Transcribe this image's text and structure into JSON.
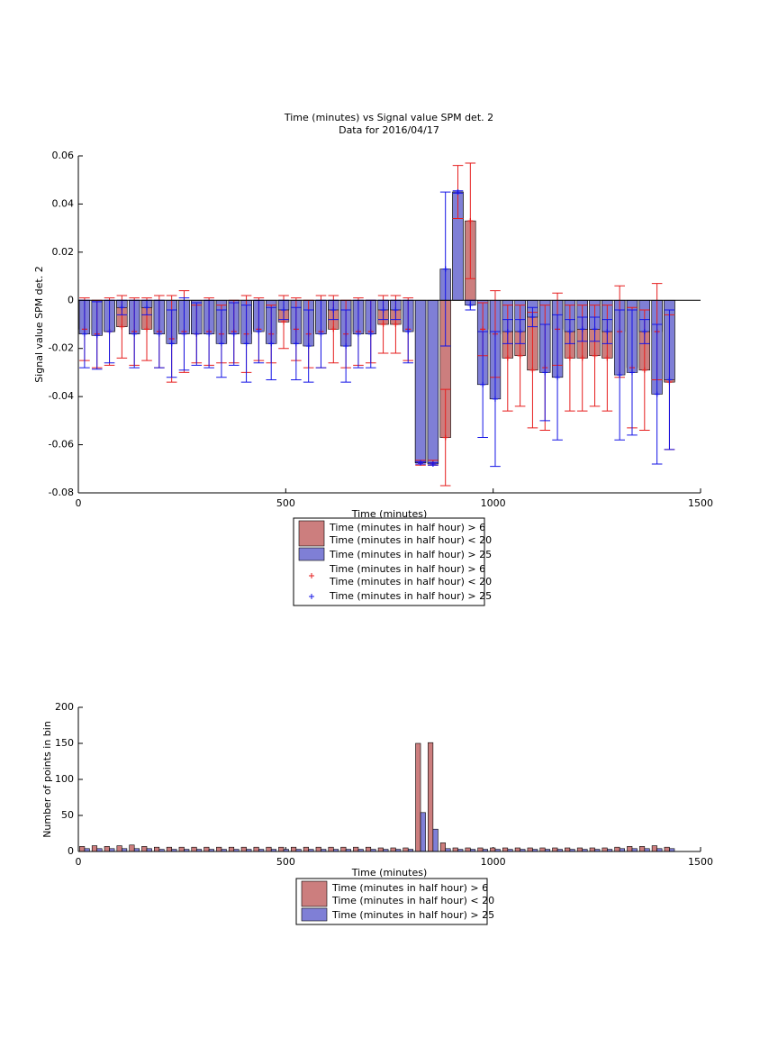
{
  "chart_data": [
    {
      "type": "bar",
      "bar_mode": "overlay",
      "title": "Time (minutes) vs Signal value SPM det. 2",
      "subtitle": "Data for 2016/04/17",
      "x_label": "Time (minutes)",
      "y_label": "Signal value SPM det. 2",
      "x": [
        15,
        45,
        75,
        105,
        135,
        165,
        195,
        225,
        255,
        285,
        315,
        345,
        375,
        405,
        435,
        465,
        495,
        525,
        555,
        585,
        615,
        645,
        675,
        705,
        735,
        765,
        795,
        825,
        855,
        885,
        915,
        945,
        975,
        1005,
        1035,
        1065,
        1095,
        1125,
        1155,
        1185,
        1215,
        1245,
        1275,
        1305,
        1335,
        1365,
        1395,
        1425
      ],
      "xlim": [
        0,
        1500
      ],
      "xticks": [
        0,
        500,
        1000,
        1500
      ],
      "ylim": [
        -0.08,
        0.06
      ],
      "yticks": [
        -0.08,
        -0.06,
        -0.04,
        -0.02,
        0,
        0.02,
        0.04,
        0.06
      ],
      "series": [
        {
          "name": "Time (minutes in half hour) > 6\nTime (minutes in half hour) < 20",
          "color": "#cc7e7e",
          "error_color": "#e61e1e",
          "values": [
            -0.012,
            -0.014,
            -0.013,
            -0.011,
            -0.013,
            -0.012,
            -0.013,
            -0.016,
            -0.013,
            -0.014,
            -0.013,
            -0.014,
            -0.013,
            -0.014,
            -0.012,
            -0.014,
            -0.009,
            -0.012,
            -0.014,
            -0.013,
            -0.012,
            -0.014,
            -0.013,
            -0.013,
            -0.01,
            -0.01,
            -0.012,
            -0.0675,
            -0.0675,
            -0.057,
            0.045,
            0.033,
            -0.012,
            -0.014,
            -0.024,
            -0.023,
            -0.029,
            -0.028,
            -0.012,
            -0.024,
            -0.024,
            -0.023,
            -0.024,
            -0.013,
            -0.028,
            -0.029,
            -0.013,
            -0.034
          ],
          "errors": [
            0.013,
            0.014,
            0.014,
            0.013,
            0.014,
            0.013,
            0.015,
            0.018,
            0.017,
            0.012,
            0.014,
            0.012,
            0.013,
            0.016,
            0.013,
            0.012,
            0.011,
            0.013,
            0.014,
            0.015,
            0.014,
            0.014,
            0.014,
            0.013,
            0.012,
            0.012,
            0.013,
            0.001,
            0.001,
            0.02,
            0.011,
            0.024,
            0.011,
            0.018,
            0.022,
            0.021,
            0.024,
            0.026,
            0.015,
            0.022,
            0.022,
            0.021,
            0.022,
            0.019,
            0.025,
            0.025,
            0.02,
            0.028
          ]
        },
        {
          "name": "Time (minutes in half hour) > 25",
          "color": "#7f7fd6",
          "error_color": "#1414e6",
          "values": [
            -0.014,
            -0.0146,
            -0.013,
            -0.003,
            -0.014,
            -0.003,
            -0.014,
            -0.018,
            -0.014,
            -0.014,
            -0.014,
            -0.018,
            -0.014,
            -0.018,
            -0.013,
            -0.018,
            -0.004,
            -0.018,
            -0.019,
            -0.014,
            -0.004,
            -0.019,
            -0.014,
            -0.014,
            -0.004,
            -0.004,
            -0.013,
            -0.0675,
            -0.068,
            0.013,
            0.045,
            -0.002,
            -0.035,
            -0.041,
            -0.013,
            -0.013,
            -0.007,
            -0.03,
            -0.032,
            -0.013,
            -0.012,
            -0.012,
            -0.013,
            -0.031,
            -0.03,
            -0.013,
            -0.039,
            -0.033
          ],
          "errors": [
            0.014,
            0.014,
            0.013,
            0.003,
            0.014,
            0.003,
            0.014,
            0.014,
            0.015,
            0.013,
            0.014,
            0.014,
            0.013,
            0.016,
            0.013,
            0.015,
            0.004,
            0.015,
            0.015,
            0.014,
            0.004,
            0.015,
            0.014,
            0.014,
            0.004,
            0.004,
            0.013,
            0.0005,
            0.0005,
            0.032,
            0.0005,
            0.002,
            0.022,
            0.028,
            0.005,
            0.005,
            0.004,
            0.02,
            0.026,
            0.005,
            0.005,
            0.005,
            0.005,
            0.027,
            0.026,
            0.005,
            0.029,
            0.029
          ]
        }
      ]
    },
    {
      "type": "bar",
      "bar_mode": "grouped",
      "x_label": "Time (minutes)",
      "y_label": "Number of points in bin",
      "x": [
        15,
        45,
        75,
        105,
        135,
        165,
        195,
        225,
        255,
        285,
        315,
        345,
        375,
        405,
        435,
        465,
        495,
        525,
        555,
        585,
        615,
        645,
        675,
        705,
        735,
        765,
        795,
        825,
        855,
        885,
        915,
        945,
        975,
        1005,
        1035,
        1065,
        1095,
        1125,
        1155,
        1185,
        1215,
        1245,
        1275,
        1305,
        1335,
        1365,
        1395,
        1425
      ],
      "xlim": [
        0,
        1500
      ],
      "xticks": [
        0,
        500,
        1000,
        1500
      ],
      "ylim": [
        0,
        200
      ],
      "yticks": [
        0,
        50,
        100,
        150,
        200
      ],
      "series": [
        {
          "name": "Time (minutes in half hour) > 6\nTime (minutes in half hour) < 20",
          "color": "#cc7e7e",
          "values": [
            7,
            8,
            7,
            8,
            9,
            7,
            6,
            6,
            6,
            6,
            6,
            6,
            6,
            6,
            6,
            6,
            6,
            6,
            6,
            6,
            6,
            6,
            6,
            6,
            5,
            5,
            5,
            150,
            151,
            12,
            5,
            5,
            5,
            5,
            5,
            5,
            5,
            5,
            5,
            5,
            5,
            5,
            5,
            6,
            7,
            7,
            8,
            6
          ]
        },
        {
          "name": "Time (minutes in half hour) > 25",
          "color": "#7f7fd6",
          "values": [
            4,
            4,
            4,
            4,
            4,
            4,
            3,
            3,
            3,
            3,
            3,
            3,
            3,
            3,
            3,
            3,
            3,
            3,
            3,
            3,
            3,
            3,
            3,
            3,
            3,
            3,
            3,
            54,
            31,
            4,
            3,
            3,
            3,
            3,
            3,
            3,
            3,
            3,
            3,
            3,
            3,
            3,
            3,
            4,
            4,
            4,
            4,
            4
          ]
        }
      ]
    }
  ]
}
